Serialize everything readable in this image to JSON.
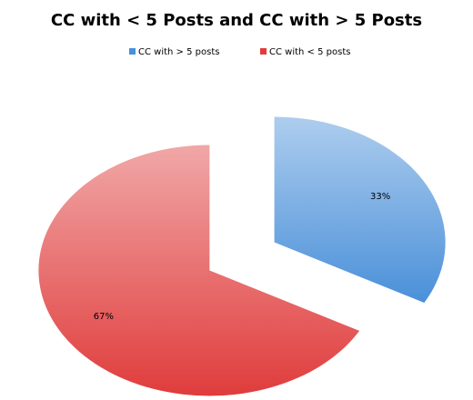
{
  "chart_data": {
    "type": "pie",
    "title": "CC with < 5 Posts and CC with > 5 Posts",
    "categories": [
      "CC with > 5 posts",
      "CC with < 5 posts"
    ],
    "values": [
      33,
      67
    ],
    "value_labels": [
      "33%",
      "67%"
    ],
    "colors": [
      "#4a90d9",
      "#e03c3c"
    ],
    "legend": "top"
  }
}
